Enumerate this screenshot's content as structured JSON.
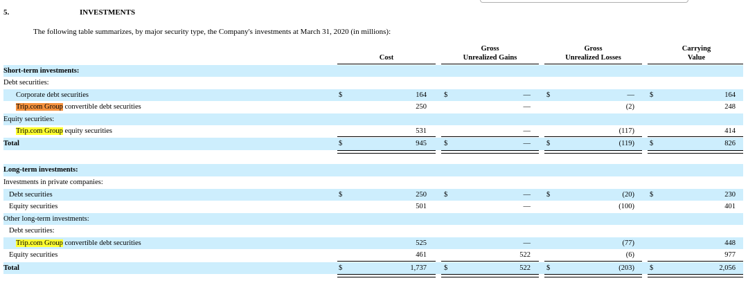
{
  "section": {
    "number": "5.",
    "title": "INVESTMENTS"
  },
  "intro": "The following table summarizes, by major security type, the Company's investments at March 31, 2020 (in millions):",
  "headers": {
    "cost": "Cost",
    "gains_1": "Gross",
    "gains_2": "Unrealized Gains",
    "losses_1": "Gross",
    "losses_2": "Unrealized Losses",
    "carry_1": "Carrying",
    "carry_2": "Value"
  },
  "dollar": "$",
  "highlight": "Trip.com Group",
  "rows": [
    {
      "label": "Short-term investments:",
      "bold": true
    },
    {
      "label": "Debt securities:"
    },
    {
      "label": "Corporate debt securities",
      "cost": "164",
      "gains": "—",
      "losses": "—",
      "carry": "164"
    },
    {
      "label_rest": " convertible debt securities",
      "cost": "250",
      "gains": "—",
      "losses": "(2)",
      "carry": "248"
    },
    {
      "label": "Equity securities:"
    },
    {
      "label_rest": " equity securities",
      "cost": "531",
      "gains": "—",
      "losses": "(117)",
      "carry": "414"
    },
    {
      "label": "Total",
      "cost": "945",
      "gains": "—",
      "losses": "(119)",
      "carry": "826"
    },
    {
      "label": "Long-term investments:"
    },
    {
      "label": "Investments in private companies:"
    },
    {
      "label": "Debt securities",
      "cost": "250",
      "gains": "—",
      "losses": "(20)",
      "carry": "230"
    },
    {
      "label": "Equity securities",
      "cost": "501",
      "gains": "—",
      "losses": "(100)",
      "carry": "401"
    },
    {
      "label": "Other long-term investments:"
    },
    {
      "label": "Debt securities:"
    },
    {
      "label_rest": " convertible debt securities",
      "cost": "525",
      "gains": "—",
      "losses": "(77)",
      "carry": "448"
    },
    {
      "label": "Equity securities",
      "cost": "461",
      "gains": "522",
      "losses": "(6)",
      "carry": "977"
    },
    {
      "label": "Total",
      "cost": "1,737",
      "gains": "522",
      "losses": "(203)",
      "carry": "2,056"
    }
  ]
}
